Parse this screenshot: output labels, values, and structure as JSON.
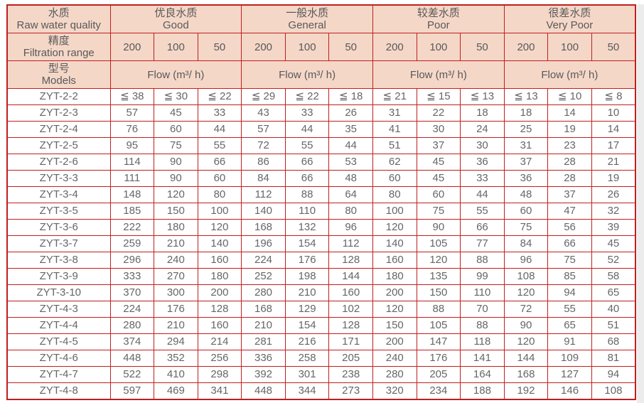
{
  "page": {
    "background": "#ffffff",
    "right_strip_color": "#ececec"
  },
  "table": {
    "colors": {
      "border": "#c01f1f",
      "header_bg": "#f5d7c8",
      "header_text": "#595959",
      "value_text": "#666666"
    },
    "header": {
      "col1": {
        "quality_zh": "水质",
        "quality_en": "Raw water quality",
        "filtration_zh": "精度",
        "filtration_en": "Filtration range",
        "models_zh": "型号",
        "models_en": "Models"
      },
      "groups": [
        {
          "zh": "优良水质",
          "en": "Good"
        },
        {
          "zh": "一般水质",
          "en": "General"
        },
        {
          "zh": "较差水质",
          "en": "Poor"
        },
        {
          "zh": "很差水质",
          "en": "Very Poor"
        }
      ],
      "filtration_values": [
        "200",
        "100",
        "50",
        "200",
        "100",
        "50",
        "200",
        "100",
        "50",
        "200",
        "100",
        "50"
      ],
      "flow_label": "Flow (m³/ h)"
    },
    "rows": [
      {
        "model": "ZYT-2-2",
        "values": [
          "≦ 38",
          "≦ 30",
          "≦ 22",
          "≦ 29",
          "≦ 22",
          "≦ 18",
          "≦ 21",
          "≦ 15",
          "≦ 13",
          "≦ 13",
          "≦ 10",
          "≦ 8"
        ]
      },
      {
        "model": "ZYT-2-3",
        "values": [
          "57",
          "45",
          "33",
          "43",
          "33",
          "26",
          "31",
          "22",
          "18",
          "18",
          "14",
          "10"
        ]
      },
      {
        "model": "ZYT-2-4",
        "values": [
          "76",
          "60",
          "44",
          "57",
          "44",
          "35",
          "41",
          "30",
          "24",
          "25",
          "19",
          "14"
        ]
      },
      {
        "model": "ZYT-2-5",
        "values": [
          "95",
          "75",
          "55",
          "72",
          "55",
          "44",
          "51",
          "37",
          "30",
          "31",
          "23",
          "17"
        ]
      },
      {
        "model": "ZYT-2-6",
        "values": [
          "114",
          "90",
          "66",
          "86",
          "66",
          "53",
          "62",
          "45",
          "36",
          "37",
          "28",
          "21"
        ]
      },
      {
        "model": "ZYT-3-3",
        "values": [
          "111",
          "90",
          "60",
          "84",
          "66",
          "48",
          "60",
          "45",
          "33",
          "36",
          "28",
          "19"
        ]
      },
      {
        "model": "ZYT-3-4",
        "values": [
          "148",
          "120",
          "80",
          "112",
          "88",
          "64",
          "80",
          "60",
          "44",
          "48",
          "37",
          "26"
        ]
      },
      {
        "model": "ZYT-3-5",
        "values": [
          "185",
          "150",
          "100",
          "140",
          "110",
          "80",
          "100",
          "75",
          "55",
          "60",
          "47",
          "32"
        ]
      },
      {
        "model": "ZYT-3-6",
        "values": [
          "222",
          "180",
          "120",
          "168",
          "132",
          "96",
          "120",
          "90",
          "66",
          "75",
          "56",
          "39"
        ]
      },
      {
        "model": "ZYT-3-7",
        "values": [
          "259",
          "210",
          "140",
          "196",
          "154",
          "112",
          "140",
          "105",
          "77",
          "84",
          "66",
          "45"
        ]
      },
      {
        "model": "ZYT-3-8",
        "values": [
          "296",
          "240",
          "160",
          "224",
          "176",
          "128",
          "160",
          "120",
          "88",
          "96",
          "75",
          "52"
        ]
      },
      {
        "model": "ZYT-3-9",
        "values": [
          "333",
          "270",
          "180",
          "252",
          "198",
          "144",
          "180",
          "135",
          "99",
          "108",
          "85",
          "58"
        ]
      },
      {
        "model": "ZYT-3-10",
        "values": [
          "370",
          "300",
          "200",
          "280",
          "210",
          "160",
          "200",
          "150",
          "110",
          "120",
          "94",
          "65"
        ]
      },
      {
        "model": "ZYT-4-3",
        "values": [
          "224",
          "176",
          "128",
          "168",
          "129",
          "102",
          "120",
          "88",
          "70",
          "72",
          "55",
          "40"
        ]
      },
      {
        "model": "ZYT-4-4",
        "values": [
          "280",
          "210",
          "160",
          "210",
          "154",
          "128",
          "150",
          "105",
          "88",
          "90",
          "65",
          "51"
        ]
      },
      {
        "model": "ZYT-4-5",
        "values": [
          "374",
          "294",
          "214",
          "281",
          "216",
          "171",
          "200",
          "147",
          "118",
          "120",
          "91",
          "68"
        ]
      },
      {
        "model": "ZYT-4-6",
        "values": [
          "448",
          "352",
          "256",
          "336",
          "258",
          "205",
          "240",
          "176",
          "141",
          "144",
          "109",
          "81"
        ]
      },
      {
        "model": "ZYT-4-7",
        "values": [
          "522",
          "410",
          "298",
          "392",
          "301",
          "238",
          "280",
          "205",
          "164",
          "168",
          "127",
          "94"
        ]
      },
      {
        "model": "ZYT-4-8",
        "values": [
          "597",
          "469",
          "341",
          "448",
          "344",
          "273",
          "320",
          "234",
          "188",
          "192",
          "146",
          "108"
        ]
      }
    ]
  }
}
